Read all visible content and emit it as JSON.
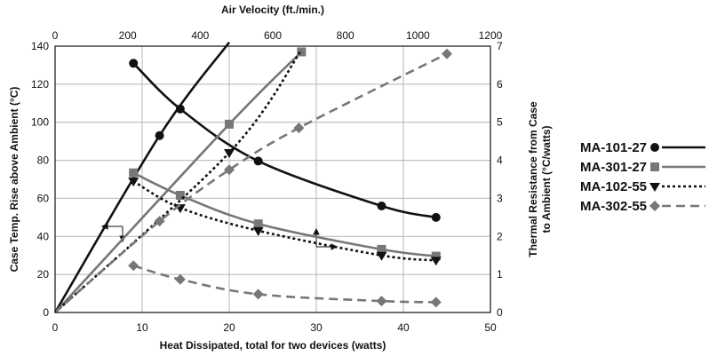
{
  "chart_data": {
    "type": "line",
    "x_bottom": {
      "label": "Heat Dissipated, total for two devices (watts)",
      "range": [
        0,
        50
      ],
      "ticks": [
        0,
        10,
        20,
        30,
        40,
        50
      ]
    },
    "x_top": {
      "label": "Air Velocity (ft./min.)",
      "range": [
        0,
        1200
      ],
      "ticks": [
        0,
        200,
        400,
        600,
        800,
        1000,
        1200
      ]
    },
    "y_left": {
      "label": "Case Temp. Rise above Ambient (°C)",
      "range": [
        0,
        140
      ],
      "ticks": [
        0,
        20,
        40,
        60,
        80,
        100,
        120,
        140
      ]
    },
    "y_right": {
      "label_line1": "Thermal Resistance from Case",
      "label_line2": "to Ambient (°C/watts)",
      "range": [
        0,
        7
      ],
      "ticks": [
        0,
        1,
        2,
        3,
        4,
        5,
        6,
        7
      ]
    },
    "grid": true,
    "legend_position": "right",
    "series": [
      {
        "name": "MA-101-27",
        "color": "#111111",
        "dash": "solid",
        "marker": "circle",
        "temp_rise": {
          "x": [
            0,
            12,
            20
          ],
          "y": [
            0,
            93,
            142
          ],
          "marker_x": [
            12
          ],
          "marker_y": [
            93
          ]
        },
        "thermal_resistance": {
          "x": [
            216,
            345,
            560,
            900,
            1050
          ],
          "y": [
            6.55,
            5.35,
            3.98,
            2.8,
            2.5
          ],
          "marker_x": [
            216,
            345,
            560,
            900,
            1050
          ],
          "marker_y": [
            6.55,
            5.35,
            3.98,
            2.8,
            2.5
          ]
        }
      },
      {
        "name": "MA-301-27",
        "color": "#777777",
        "dash": "solid",
        "marker": "square",
        "temp_rise": {
          "x": [
            0,
            20,
            28.3
          ],
          "y": [
            0,
            99,
            137
          ],
          "marker_x": [
            20,
            28.3
          ],
          "marker_y": [
            99,
            137
          ]
        },
        "thermal_resistance": {
          "x": [
            216,
            345,
            560,
            900,
            1050
          ],
          "y": [
            3.67,
            3.08,
            2.33,
            1.66,
            1.48
          ],
          "marker_x": [
            216,
            345,
            560,
            900,
            1050
          ],
          "marker_y": [
            3.67,
            3.08,
            2.33,
            1.66,
            1.48
          ]
        }
      },
      {
        "name": "MA-102-55",
        "color": "#111111",
        "dash": "dotted",
        "marker": "triangle-down",
        "temp_rise": {
          "x": [
            0,
            20,
            28.3
          ],
          "y": [
            0,
            84,
            138
          ],
          "marker_x": [
            20
          ],
          "marker_y": [
            84
          ]
        },
        "thermal_resistance": {
          "x": [
            216,
            345,
            560,
            900,
            1050
          ],
          "y": [
            3.45,
            2.75,
            2.15,
            1.5,
            1.37
          ],
          "marker_x": [
            216,
            345,
            560,
            900,
            1050
          ],
          "marker_y": [
            3.45,
            2.75,
            2.15,
            1.5,
            1.37
          ]
        }
      },
      {
        "name": "MA-302-55",
        "color": "#777777",
        "dash": "dashed",
        "marker": "diamond",
        "temp_rise": {
          "x": [
            0,
            12,
            20,
            28,
            45
          ],
          "y": [
            0,
            48,
            75,
            97,
            136
          ],
          "marker_x": [
            12,
            20,
            28,
            45
          ],
          "marker_y": [
            48,
            75,
            97,
            136
          ]
        },
        "thermal_resistance": {
          "x": [
            216,
            345,
            560,
            900,
            1050
          ],
          "y": [
            1.23,
            0.87,
            0.48,
            0.3,
            0.27
          ],
          "marker_x": [
            216,
            345,
            560,
            900,
            1050
          ],
          "marker_y": [
            1.23,
            0.87,
            0.48,
            0.3,
            0.27
          ]
        }
      }
    ]
  }
}
